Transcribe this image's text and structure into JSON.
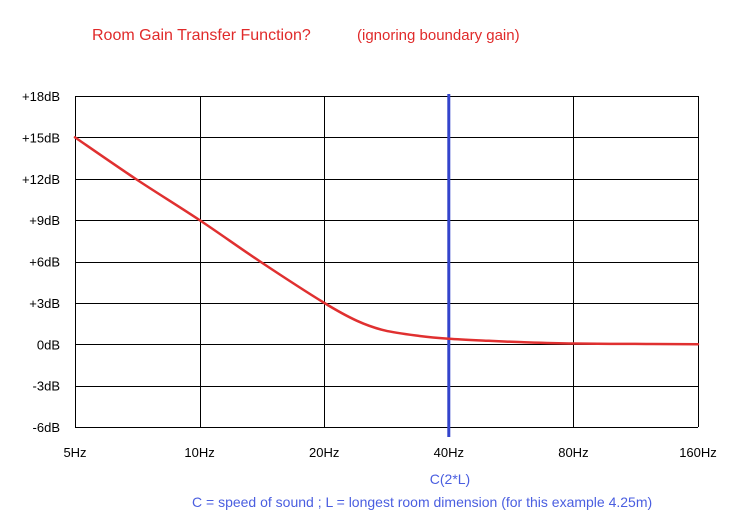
{
  "chart_data": {
    "type": "line",
    "title": "Room Gain Transfer Function?",
    "subtitle": "(ignoring boundary gain)",
    "x_scale": "log2",
    "x_ticks": [
      "5Hz",
      "10Hz",
      "20Hz",
      "40Hz",
      "80Hz",
      "160Hz"
    ],
    "x_tick_values": [
      5,
      10,
      20,
      40,
      80,
      160
    ],
    "xlim": [
      5,
      160
    ],
    "y_ticks": [
      "+18dB",
      "+15dB",
      "+12dB",
      "+9dB",
      "+6dB",
      "+3dB",
      "0dB",
      "-3dB",
      "-6dB"
    ],
    "y_tick_values": [
      18,
      15,
      12,
      9,
      6,
      3,
      0,
      -3,
      -6
    ],
    "ylim": [
      -6,
      18
    ],
    "grid": true,
    "series": [
      {
        "color": "#e03030",
        "x": [
          5,
          7,
          10,
          14,
          20,
          24,
          28,
          34,
          40,
          50,
          60,
          80,
          120,
          160
        ],
        "y": [
          15.0,
          12.0,
          9.0,
          6.0,
          3.0,
          1.7,
          1.0,
          0.6,
          0.4,
          0.25,
          0.15,
          0.05,
          0.02,
          0.0
        ]
      }
    ],
    "vline": {
      "x": 40,
      "color": "#3344cc"
    },
    "annotations": {
      "vline_label": "C(2*L)",
      "footnote": "C = speed of sound ; L = longest room dimension (for this example 4.25m)"
    },
    "colors": {
      "title": "#e02a2a",
      "annotation": "#4a5ee0",
      "grid": "#000000",
      "axis_text": "#000000"
    }
  }
}
